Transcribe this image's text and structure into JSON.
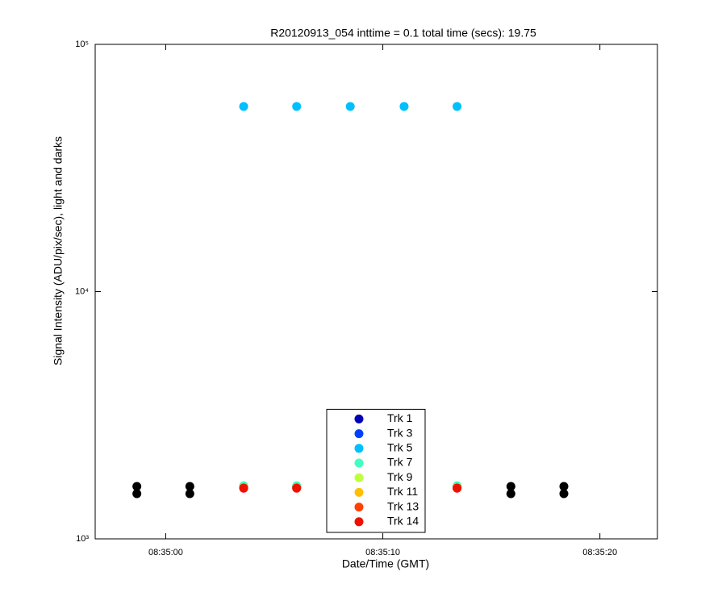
{
  "chart_data": {
    "type": "scatter",
    "title": "R20120913_054 inttime = 0.1 total time (secs): 19.75",
    "x_label": "Date/Time (GMT)",
    "y_label": "Signal Intensity (ADU/pix/sec), light and darks",
    "y_scale": "log",
    "xlim": [
      30896.75,
      30922.65
    ],
    "ylim": [
      1000,
      100000
    ],
    "xticks": [
      {
        "value": 30900,
        "label": "08:35:00"
      },
      {
        "value": 30910,
        "label": "08:35:10"
      },
      {
        "value": 30920,
        "label": "08:35:20"
      }
    ],
    "yticks": [
      {
        "value": 1000,
        "label": "10³"
      },
      {
        "value": 10000,
        "label": "10⁴"
      },
      {
        "value": 100000,
        "label": "10⁵"
      }
    ],
    "legend_position": "bottom",
    "series": [
      {
        "color": "#000000",
        "x": [
          30898.67,
          30898.67,
          30901.11,
          30901.11,
          30915.9,
          30915.9,
          30918.34,
          30918.34
        ],
        "values": [
          1630,
          1523,
          1630,
          1523,
          1630,
          1523,
          1630,
          1523
        ]
      },
      {
        "name": "Trk 1",
        "color": "#0000b4",
        "x": [
          30903.59,
          30906.03,
          30908.5,
          30910.98,
          30913.42
        ],
        "values": [
          1620,
          1620,
          1620,
          1620,
          1620
        ]
      },
      {
        "name": "Trk 3",
        "color": "#0040ff",
        "x": [
          30903.59,
          30906.03,
          30908.5,
          30910.98,
          30913.42
        ],
        "values": [
          1625,
          1625,
          1625,
          1625,
          1625
        ]
      },
      {
        "name": "Trk 5",
        "color": "#00bfff",
        "x": [
          30903.59,
          30906.03,
          30908.5,
          30910.98,
          30913.42
        ],
        "values": [
          56100,
          56100,
          56100,
          56100,
          56100
        ]
      },
      {
        "name": "Trk 7",
        "color": "#40ffbf",
        "x": [
          30903.59,
          30906.03,
          30908.5,
          30910.98,
          30913.42
        ],
        "values": [
          1640,
          1640,
          1640,
          1640,
          1640
        ]
      },
      {
        "name": "Trk 9",
        "color": "#bfff40",
        "x": [
          30903.59,
          30906.03,
          30908.5,
          30910.98,
          30913.42
        ],
        "values": [
          1615,
          1615,
          1615,
          1615,
          1615
        ]
      },
      {
        "name": "Trk 11",
        "color": "#ffbf00",
        "x": [
          30903.59,
          30906.03,
          30908.5,
          30910.98,
          30913.42
        ],
        "values": [
          1610,
          1610,
          1610,
          1610,
          1610
        ]
      },
      {
        "name": "Trk 13",
        "color": "#ff4000",
        "x": [
          30903.59,
          30906.03,
          30908.5,
          30910.98,
          30913.42
        ],
        "values": [
          1608,
          1608,
          1608,
          1608,
          1608
        ]
      },
      {
        "name": "Trk 14",
        "color": "#ee1100",
        "x": [
          30903.59,
          30906.03,
          30908.5,
          30910.98,
          30913.42
        ],
        "values": [
          1603,
          1603,
          1603,
          1603,
          1603
        ]
      }
    ]
  }
}
